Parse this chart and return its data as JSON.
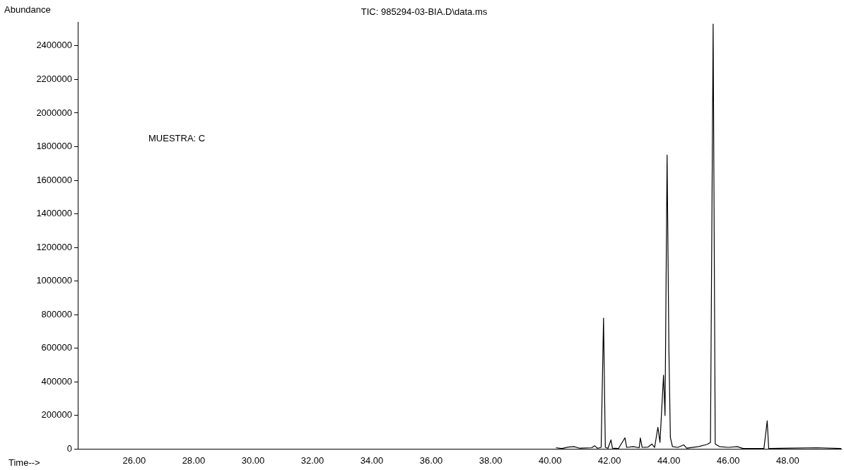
{
  "chart_data": {
    "type": "line",
    "title": "TIC: 985294-03-BIA.D\\data.ms",
    "xlabel": "Time-->",
    "ylabel": "Abundance",
    "annotations": [
      "MUESTRA: C"
    ],
    "x": [
      40.2,
      40.4,
      40.6,
      40.8,
      41.0,
      41.4,
      41.5,
      41.6,
      41.72,
      41.8,
      41.86,
      41.95,
      42.05,
      42.1,
      42.3,
      42.52,
      42.58,
      42.8,
      43.0,
      43.04,
      43.1,
      43.3,
      43.43,
      43.52,
      43.63,
      43.7,
      43.82,
      43.87,
      43.94,
      44.0,
      44.05,
      44.12,
      44.3,
      44.5,
      44.6,
      45.0,
      45.29,
      45.4,
      45.49,
      45.56,
      45.7,
      46.0,
      46.3,
      46.5,
      47.2,
      47.31,
      47.36,
      48.0,
      49.0,
      49.8
    ],
    "series": [
      {
        "color": "#000000",
        "values": [
          8000,
          3000,
          12000,
          15000,
          5000,
          8000,
          20000,
          5000,
          10000,
          780000,
          10000,
          5000,
          55000,
          5000,
          3000,
          67000,
          10000,
          15000,
          8000,
          66000,
          10000,
          12000,
          30000,
          10000,
          130000,
          40000,
          440000,
          200000,
          1750000,
          600000,
          70000,
          15000,
          10000,
          25000,
          5000,
          15000,
          28000,
          40000,
          2530000,
          30000,
          15000,
          10000,
          15000,
          3000,
          3000,
          168000,
          3000,
          5000,
          8000,
          3000
        ]
      }
    ],
    "xlim": [
      24.1,
      49.8
    ],
    "xticks": [
      {
        "value": 26,
        "label": "26.00"
      },
      {
        "value": 28,
        "label": "28.00"
      },
      {
        "value": 30,
        "label": "30.00"
      },
      {
        "value": 32,
        "label": "32.00"
      },
      {
        "value": 34,
        "label": "34.00"
      },
      {
        "value": 36,
        "label": "36.00"
      },
      {
        "value": 38,
        "label": "38.00"
      },
      {
        "value": 40,
        "label": "40.00"
      },
      {
        "value": 42,
        "label": "42.00"
      },
      {
        "value": 44,
        "label": "44.00"
      },
      {
        "value": 46,
        "label": "46.00"
      },
      {
        "value": 48,
        "label": "48.00"
      }
    ],
    "ylim": [
      0,
      2540000
    ],
    "yticks": [
      0,
      200000,
      400000,
      600000,
      800000,
      1000000,
      1200000,
      1400000,
      1600000,
      1800000,
      2000000,
      2200000,
      2400000
    ],
    "grid": false,
    "legend": false,
    "marker": "none",
    "line_style": "solid"
  }
}
